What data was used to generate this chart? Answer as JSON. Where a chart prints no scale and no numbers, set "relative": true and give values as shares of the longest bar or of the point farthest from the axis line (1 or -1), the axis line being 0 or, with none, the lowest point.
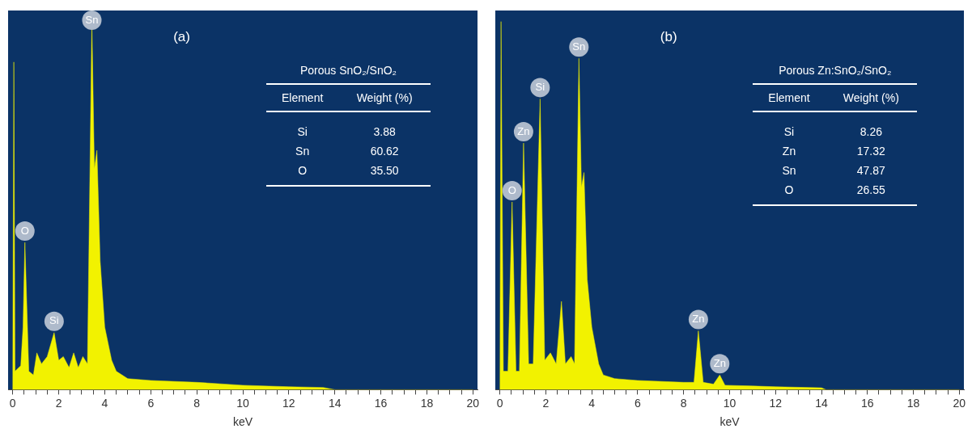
{
  "chart_data": [
    {
      "type": "area",
      "title": "(a)",
      "xlabel": "keV",
      "relative": true,
      "marker": "none",
      "xlim": [
        -0.2,
        20.2
      ],
      "xticks": [
        0,
        {
          "value": 0.5,
          "label": null
        },
        {
          "value": 1,
          "label": null
        },
        {
          "value": 1.5,
          "label": null
        },
        2,
        {
          "value": 2.5,
          "label": null
        },
        {
          "value": 3,
          "label": null
        },
        {
          "value": 3.5,
          "label": null
        },
        4,
        {
          "value": 4.5,
          "label": null
        },
        {
          "value": 5,
          "label": null
        },
        {
          "value": 5.5,
          "label": null
        },
        6,
        {
          "value": 6.5,
          "label": null
        },
        {
          "value": 7,
          "label": null
        },
        {
          "value": 7.5,
          "label": null
        },
        8,
        {
          "value": 8.5,
          "label": null
        },
        {
          "value": 9,
          "label": null
        },
        {
          "value": 9.5,
          "label": null
        },
        10,
        {
          "value": 10.5,
          "label": null
        },
        {
          "value": 11,
          "label": null
        },
        {
          "value": 11.5,
          "label": null
        },
        12,
        {
          "value": 12.5,
          "label": null
        },
        {
          "value": 13,
          "label": null
        },
        {
          "value": 13.5,
          "label": null
        },
        14,
        {
          "value": 14.5,
          "label": null
        },
        {
          "value": 15,
          "label": null
        },
        {
          "value": 15.5,
          "label": null
        },
        16,
        {
          "value": 16.5,
          "label": null
        },
        {
          "value": 17,
          "label": null
        },
        {
          "value": 17.5,
          "label": null
        },
        18,
        {
          "value": 18.5,
          "label": null
        },
        {
          "value": 19,
          "label": null
        },
        {
          "value": 19.5,
          "label": null
        },
        20
      ],
      "series": [
        {
          "color": "#f2f200",
          "x": [
            0,
            0.05,
            0.1,
            0.35,
            0.45,
            0.53,
            0.7,
            0.9,
            1.05,
            1.25,
            1.5,
            1.8,
            2.0,
            2.2,
            2.45,
            2.65,
            2.85,
            3.05,
            3.25,
            3.44,
            3.55,
            3.66,
            3.8,
            4.0,
            4.3,
            4.5,
            5,
            6,
            8,
            10,
            12,
            13.5,
            14,
            20
          ],
          "values": [
            0,
            0.89,
            0.05,
            0.065,
            0.17,
            0.4,
            0.05,
            0.04,
            0.1,
            0.07,
            0.09,
            0.155,
            0.08,
            0.09,
            0.06,
            0.1,
            0.06,
            0.09,
            0.07,
            1,
            0.6,
            0.65,
            0.35,
            0.17,
            0.08,
            0.05,
            0.03,
            0.025,
            0.02,
            0.012,
            0.008,
            0.006,
            0,
            0
          ]
        }
      ],
      "annotations": [
        {
          "text": "Sn",
          "x": 3.44,
          "y": 1
        },
        {
          "text": "O",
          "x": 0.53,
          "y": 0.4
        },
        {
          "text": "Si",
          "x": 1.8,
          "y": 0.155
        },
        "Porous SnO₂/SnO₂",
        "Element",
        "Weight (%)",
        "Si",
        "3.88",
        "Sn",
        "60.62",
        "O",
        "35.50"
      ]
    },
    {
      "type": "area",
      "title": "(b)",
      "xlabel": "keV",
      "relative": true,
      "marker": "none",
      "xlim": [
        -0.2,
        20.2
      ],
      "xticks": [
        0,
        {
          "value": 0.5,
          "label": null
        },
        {
          "value": 1,
          "label": null
        },
        {
          "value": 1.5,
          "label": null
        },
        2,
        {
          "value": 2.5,
          "label": null
        },
        {
          "value": 3,
          "label": null
        },
        {
          "value": 3.5,
          "label": null
        },
        4,
        {
          "value": 4.5,
          "label": null
        },
        {
          "value": 5,
          "label": null
        },
        {
          "value": 5.5,
          "label": null
        },
        6,
        {
          "value": 6.5,
          "label": null
        },
        {
          "value": 7,
          "label": null
        },
        {
          "value": 7.5,
          "label": null
        },
        8,
        {
          "value": 8.5,
          "label": null
        },
        {
          "value": 9,
          "label": null
        },
        {
          "value": 9.5,
          "label": null
        },
        10,
        {
          "value": 10.5,
          "label": null
        },
        {
          "value": 11,
          "label": null
        },
        {
          "value": 11.5,
          "label": null
        },
        12,
        {
          "value": 12.5,
          "label": null
        },
        {
          "value": 13,
          "label": null
        },
        {
          "value": 13.5,
          "label": null
        },
        14,
        {
          "value": 14.5,
          "label": null
        },
        {
          "value": 15,
          "label": null
        },
        {
          "value": 15.5,
          "label": null
        },
        16,
        {
          "value": 16.5,
          "label": null
        },
        {
          "value": 17,
          "label": null
        },
        {
          "value": 17.5,
          "label": null
        },
        18,
        {
          "value": 18.5,
          "label": null
        },
        {
          "value": 19,
          "label": null
        },
        {
          "value": 19.5,
          "label": null
        },
        20
      ],
      "series": [
        {
          "color": "#f2f200",
          "x": [
            0,
            0.05,
            0.15,
            0.35,
            0.53,
            0.7,
            0.85,
            1.03,
            1.25,
            1.45,
            1.75,
            1.95,
            2.2,
            2.45,
            2.68,
            2.85,
            3.1,
            3.25,
            3.44,
            3.55,
            3.66,
            3.8,
            4.0,
            4.3,
            4.5,
            5,
            6,
            8,
            8.45,
            8.64,
            8.85,
            9.3,
            9.57,
            9.8,
            11,
            12,
            14,
            14.2,
            20
          ],
          "values": [
            0,
            1,
            0.05,
            0.05,
            0.51,
            0.05,
            0.05,
            0.67,
            0.07,
            0.07,
            0.79,
            0.08,
            0.1,
            0.07,
            0.24,
            0.07,
            0.09,
            0.07,
            0.9,
            0.55,
            0.59,
            0.3,
            0.17,
            0.07,
            0.04,
            0.03,
            0.025,
            0.02,
            0.02,
            0.16,
            0.02,
            0.015,
            0.04,
            0.012,
            0.01,
            0.008,
            0.005,
            0,
            0
          ]
        }
      ],
      "annotations": [
        {
          "text": "Sn",
          "x": 3.44,
          "y": 0.9
        },
        {
          "text": "O",
          "x": 0.53,
          "y": 0.51
        },
        {
          "text": "Zn",
          "x": 1.03,
          "y": 0.67
        },
        {
          "text": "Si",
          "x": 1.75,
          "y": 0.79
        },
        {
          "text": "Zn",
          "x": 8.64,
          "y": 0.16
        },
        {
          "text": "Zn",
          "x": 9.57,
          "y": 0.04
        },
        "Porous Zn:SnO₂/SnO₂",
        "Element",
        "Weight (%)",
        "Si",
        "8.26",
        "Zn",
        "17.32",
        "Sn",
        "47.87",
        "O",
        "26.55"
      ]
    }
  ]
}
